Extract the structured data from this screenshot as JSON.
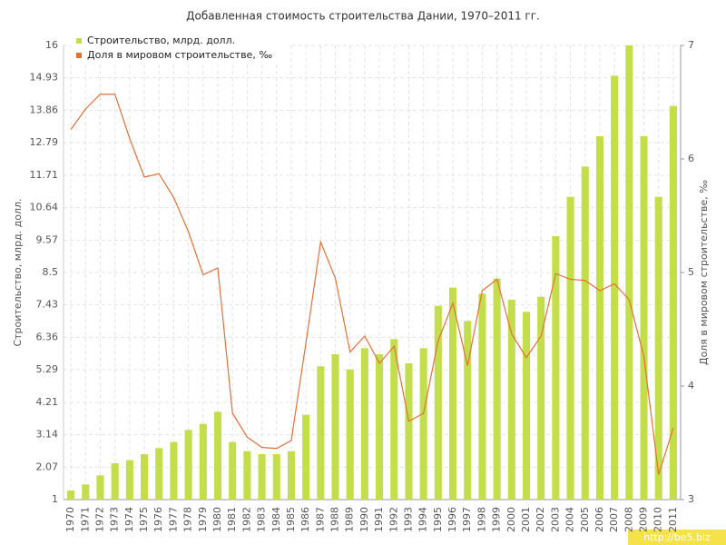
{
  "chart_data": {
    "type": "bar",
    "title": "Добавленная стоимость строительства Дании, 1970–2011 гг.",
    "ylabel": "Строительство, млрд. долл.",
    "y2label": "Доля в мировом строительстве, ‰",
    "categories": [
      "1970",
      "1971",
      "1972",
      "1973",
      "1974",
      "1975",
      "1976",
      "1977",
      "1978",
      "1979",
      "1980",
      "1981",
      "1982",
      "1983",
      "1984",
      "1985",
      "1986",
      "1987",
      "1988",
      "1989",
      "1990",
      "1991",
      "1992",
      "1993",
      "1994",
      "1995",
      "1996",
      "1997",
      "1998",
      "1999",
      "2000",
      "2001",
      "2002",
      "2003",
      "2004",
      "2005",
      "2006",
      "2007",
      "2008",
      "2009",
      "2010",
      "2011"
    ],
    "series": [
      {
        "name": "Строительство, млрд. долл.",
        "color": "#c3de4a",
        "type": "bar",
        "values": [
          1.3,
          1.5,
          1.8,
          2.2,
          2.3,
          2.5,
          2.7,
          2.9,
          3.3,
          3.5,
          3.9,
          2.9,
          2.6,
          2.5,
          2.5,
          2.6,
          3.8,
          5.4,
          5.8,
          5.3,
          6.0,
          5.8,
          6.3,
          5.5,
          6.0,
          7.4,
          8.0,
          6.9,
          7.8,
          8.3,
          7.6,
          7.2,
          7.7,
          9.7,
          11.0,
          12.0,
          13.0,
          15.0,
          16.0,
          13.0,
          11.0,
          14.0
        ]
      },
      {
        "name": "Доля в мировом строительстве, ‰",
        "color": "#e0703c",
        "type": "line",
        "axis": "y2",
        "values": [
          6.26,
          6.44,
          6.57,
          6.57,
          6.18,
          5.84,
          5.87,
          5.66,
          5.36,
          4.98,
          5.04,
          3.76,
          3.55,
          3.46,
          3.45,
          3.52,
          4.38,
          5.27,
          4.95,
          4.3,
          4.44,
          4.2,
          4.35,
          3.69,
          3.76,
          4.4,
          4.73,
          4.18,
          4.84,
          4.94,
          4.46,
          4.25,
          4.44,
          4.99,
          4.94,
          4.93,
          4.84,
          4.9,
          4.76,
          4.26,
          3.22,
          3.63
        ]
      }
    ],
    "ylim": [
      1,
      16
    ],
    "yticks": [
      1,
      2.07,
      3.14,
      4.21,
      5.29,
      6.36,
      7.43,
      8.5,
      9.57,
      10.64,
      11.71,
      12.79,
      13.86,
      14.93,
      16
    ],
    "y2lim": [
      3,
      7
    ],
    "y2ticks": [
      3,
      4,
      5,
      6,
      7
    ],
    "grid": true,
    "legend": "top-left",
    "watermark": "http://be5.biz"
  }
}
